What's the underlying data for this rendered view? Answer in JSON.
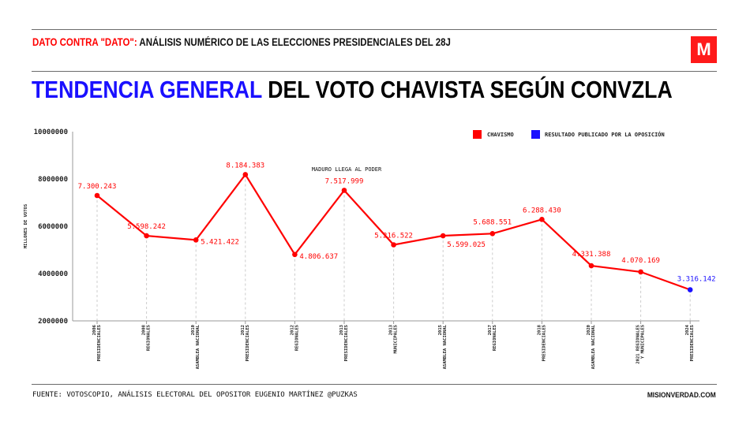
{
  "header": {
    "kicker_highlight": "DATO CONTRA \"DATO\":",
    "kicker_rest": " ANÁLISIS NUMÉRICO DE LAS ELECCIONES PRESIDENCIALES DEL 28J",
    "logo_text": "M",
    "title_highlight": "TENDENCIA GENERAL",
    "title_rest": " DEL VOTO CHAVISTA SEGÚN CONVZLA"
  },
  "footer": {
    "source": "FUENTE: VOTOSCOPIO, ANÁLISIS ELECTORAL DEL OPOSITOR EUGENIO MARTÍNEZ @PUZKAS",
    "site": "MISIONVERDAD.COM"
  },
  "chart_data": {
    "type": "line",
    "ylabel": "MILLONES DE VOTOS",
    "ylim": [
      2000000,
      10000000
    ],
    "yticks": [
      "2000000",
      "4000000",
      "6000000",
      "8000000",
      "10000000"
    ],
    "grid": "vertical dashed per category",
    "legend_placement": "top-right",
    "legend": [
      {
        "label": "CHAVISMO",
        "color": "#ff0000"
      },
      {
        "label": "RESULTADO PUBLICADO POR LA OPOSICIÓN",
        "color": "#1a10ff"
      }
    ],
    "annotation": "MADURO LLEGA AL PODER",
    "categories": [
      [
        "2006",
        "PRESIDENCIALES"
      ],
      [
        "2008",
        "REGIONALES"
      ],
      [
        "2010",
        "ASAMBLEA NACIONAL"
      ],
      [
        "2012",
        "PRESIDENCIALES"
      ],
      [
        "2012",
        "REGIONALES"
      ],
      [
        "2013",
        "PRESIDENCIALES"
      ],
      [
        "2013",
        "MUNICIPALES"
      ],
      [
        "2015",
        "ASAMBLEA NACIONAL"
      ],
      [
        "2017",
        "REGIONALES"
      ],
      [
        "2018",
        "PRESIDENCIALES"
      ],
      [
        "2020",
        "ASAMBLEA NACIONAL"
      ],
      [
        "2021 REGIONALES",
        "Y MUNICIPALES"
      ],
      [
        "2024",
        "PRESIDENCIALES"
      ]
    ],
    "values": [
      7300243,
      5598242,
      5421422,
      8184383,
      4806637,
      7517999,
      5216522,
      5599025,
      5688551,
      6288430,
      4331388,
      4070169,
      3316142
    ],
    "value_labels": [
      "7.300.243",
      "5.598.242",
      "5.421.422",
      "8.184.383",
      "4.806.637",
      "7.517.999",
      "5.216.522",
      "5.599.025",
      "5.688.551",
      "6.288.430",
      "4.331.388",
      "4.070.169",
      "3.316.142"
    ],
    "point_series": [
      "chavismo",
      "chavismo",
      "chavismo",
      "chavismo",
      "chavismo",
      "chavismo",
      "chavismo",
      "chavismo",
      "chavismo",
      "chavismo",
      "chavismo",
      "chavismo",
      "oposicion"
    ]
  }
}
